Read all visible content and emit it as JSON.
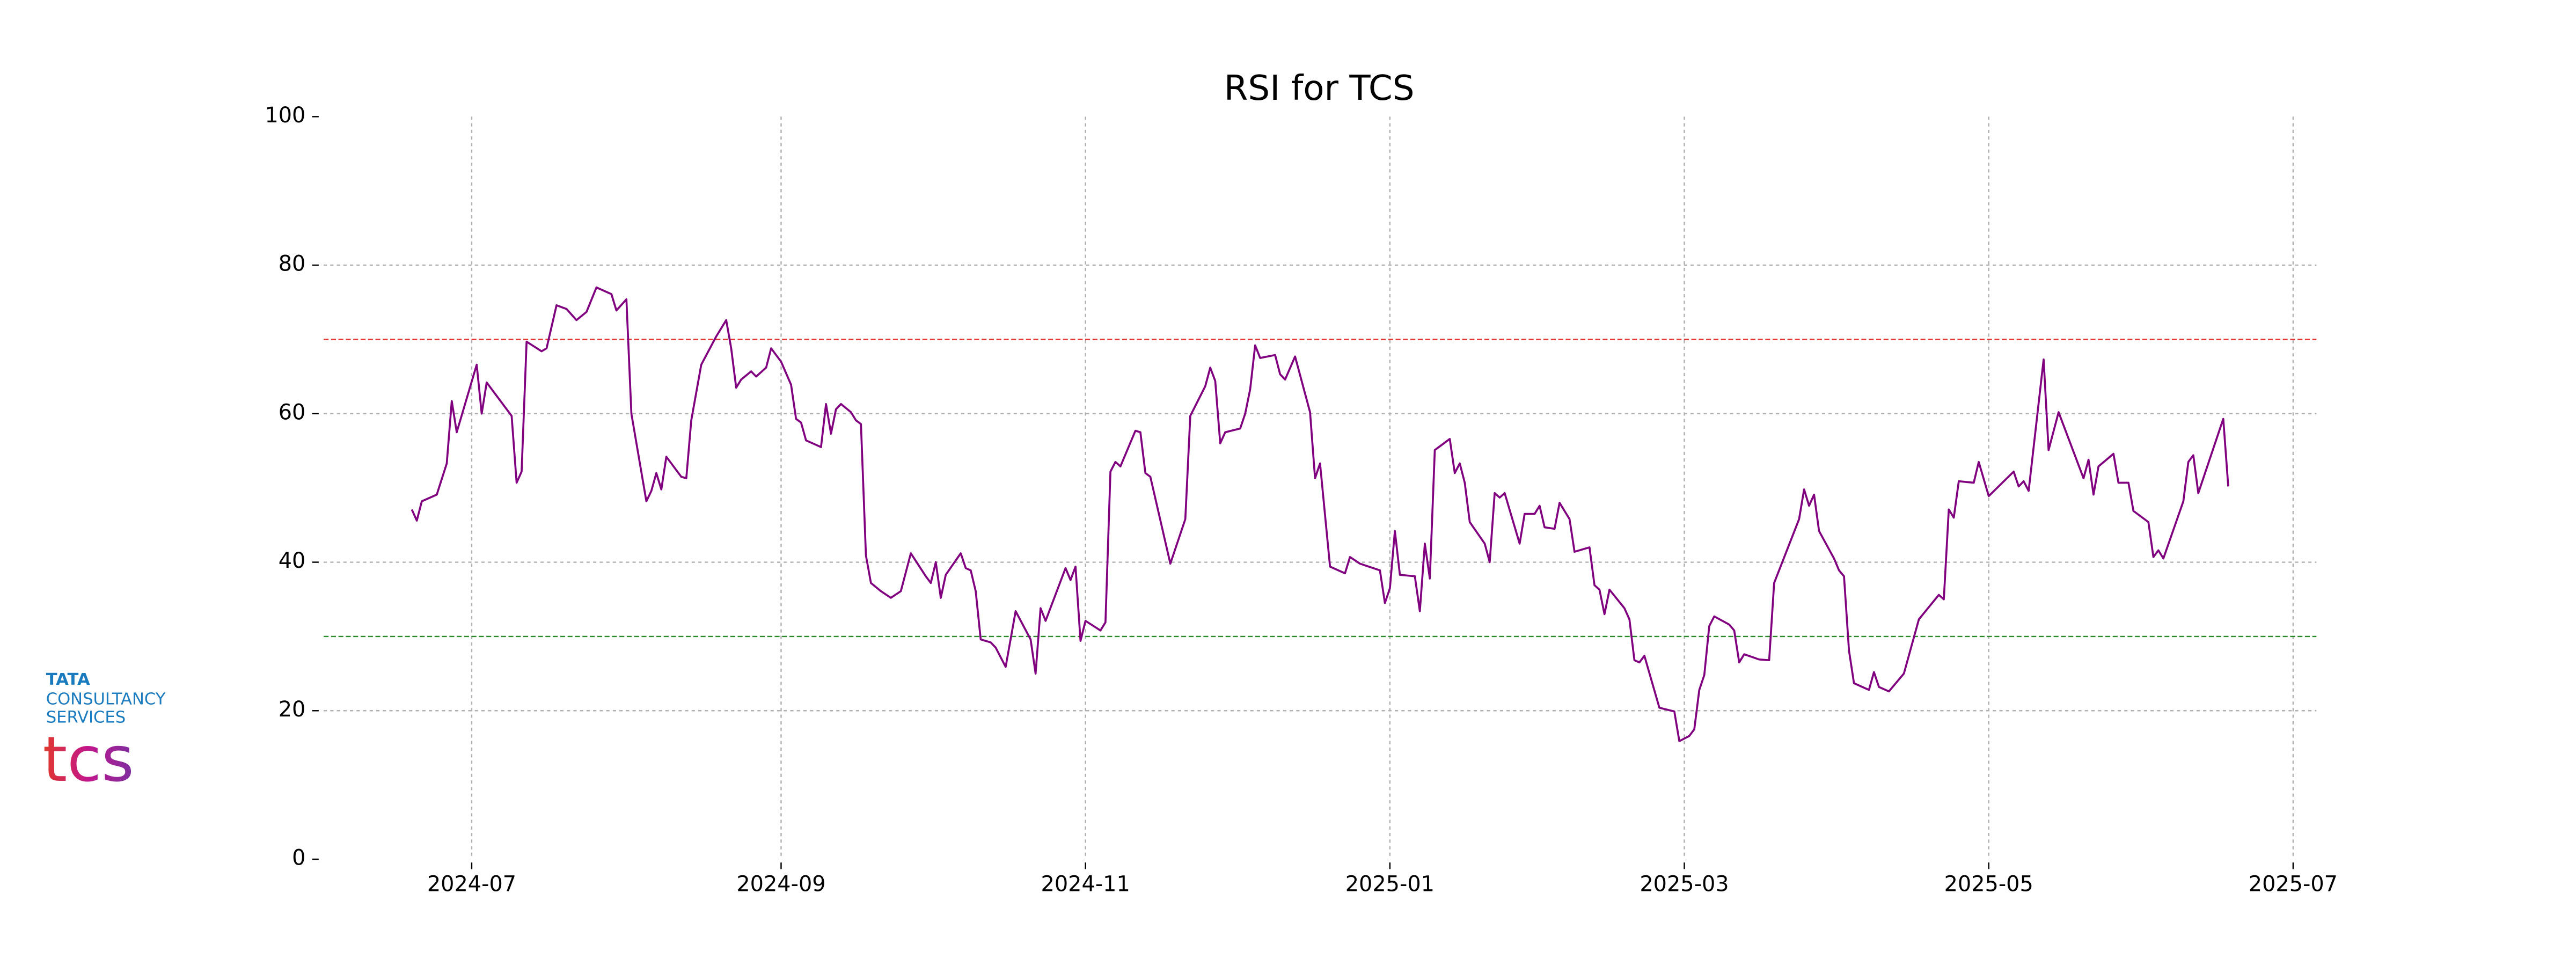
{
  "chart_data": {
    "type": "line",
    "title": "RSI for TCS",
    "x": [
      -12,
      -11,
      -10,
      -7,
      -5,
      -4,
      -3,
      1,
      2,
      3,
      8,
      9,
      10,
      11,
      14,
      15,
      17,
      19,
      21,
      23,
      25,
      28,
      29,
      31,
      32,
      35,
      36,
      37,
      38,
      39,
      42,
      43,
      44,
      46,
      49,
      51,
      52,
      53,
      54,
      56,
      57,
      59,
      60,
      62,
      64,
      65,
      66,
      67,
      70,
      71,
      72,
      73,
      74,
      76,
      77,
      78,
      79,
      80,
      82,
      84,
      86,
      88,
      91,
      92,
      93,
      94,
      95,
      98,
      99,
      100,
      101,
      102,
      104,
      105,
      107,
      109,
      112,
      113,
      114,
      115,
      119,
      120,
      121,
      122,
      123,
      126,
      127,
      128,
      129,
      130,
      133,
      134,
      135,
      136,
      140,
      143,
      144,
      147,
      148,
      149,
      150,
      151,
      154,
      155,
      156,
      157,
      158,
      161,
      162,
      163,
      165,
      168,
      169,
      170,
      172,
      175,
      176,
      178,
      182,
      183,
      184,
      185,
      186,
      189,
      190,
      191,
      192,
      193,
      196,
      197,
      198,
      199,
      200,
      203,
      204,
      205,
      206,
      207,
      210,
      211,
      213,
      214,
      215,
      217,
      218,
      220,
      221,
      224,
      225,
      226,
      227,
      228,
      231,
      232,
      233,
      234,
      235,
      238,
      241,
      242,
      244,
      245,
      246,
      247,
      248,
      249,
      252,
      253,
      254,
      255,
      258,
      260,
      261,
      266,
      267,
      268,
      269,
      270,
      273,
      274,
      275,
      276,
      277,
      280,
      281,
      282,
      284,
      287,
      290,
      294,
      295,
      296,
      297,
      298,
      301,
      302,
      304,
      309,
      310,
      311,
      312,
      315,
      316,
      318,
      323,
      324,
      325,
      326,
      329,
      330,
      332,
      333,
      336,
      337,
      338,
      339,
      343,
      344,
      345,
      346,
      351,
      352
    ],
    "values": [
      47.1,
      45.6,
      48.2,
      49.1,
      53.3,
      61.7,
      57.5,
      66.6,
      60.0,
      64.2,
      59.7,
      50.7,
      52.2,
      69.7,
      68.4,
      68.8,
      74.6,
      74.1,
      72.6,
      73.7,
      77.0,
      76.1,
      73.9,
      75.4,
      60.0,
      48.2,
      49.6,
      52.0,
      49.8,
      54.2,
      51.5,
      51.3,
      59.1,
      66.6,
      70.4,
      72.6,
      68.8,
      63.5,
      64.6,
      65.7,
      65.0,
      66.2,
      68.8,
      67.0,
      63.9,
      59.3,
      58.8,
      56.4,
      55.5,
      61.3,
      57.3,
      60.6,
      61.3,
      60.2,
      59.1,
      58.6,
      40.9,
      37.2,
      36.1,
      35.2,
      36.1,
      41.2,
      38.1,
      37.2,
      40.0,
      35.2,
      38.3,
      41.2,
      39.2,
      38.9,
      36.1,
      29.6,
      29.2,
      28.5,
      25.9,
      33.4,
      29.6,
      25.0,
      33.8,
      32.1,
      39.2,
      37.6,
      39.4,
      29.4,
      32.1,
      30.8,
      31.9,
      52.2,
      53.5,
      52.9,
      57.7,
      57.5,
      52.0,
      51.5,
      39.8,
      45.8,
      59.7,
      63.7,
      66.2,
      64.4,
      56.0,
      57.5,
      58.0,
      60.0,
      63.3,
      69.2,
      67.5,
      67.9,
      65.3,
      64.6,
      67.7,
      60.2,
      51.3,
      53.3,
      39.4,
      38.5,
      40.7,
      39.8,
      38.9,
      34.5,
      36.5,
      44.2,
      38.3,
      38.1,
      33.4,
      42.5,
      37.8,
      55.1,
      56.6,
      52.0,
      53.3,
      50.7,
      45.4,
      42.5,
      40.0,
      49.3,
      48.7,
      49.3,
      42.5,
      46.5,
      46.5,
      47.6,
      44.7,
      44.5,
      48.0,
      45.8,
      41.4,
      42.0,
      36.9,
      36.3,
      33.0,
      36.3,
      33.8,
      32.3,
      26.8,
      26.5,
      27.4,
      20.4,
      19.9,
      15.9,
      16.6,
      17.5,
      22.8,
      24.8,
      31.4,
      32.7,
      31.6,
      30.8,
      26.5,
      27.6,
      26.9,
      26.8,
      37.2,
      45.8,
      49.8,
      47.6,
      49.1,
      44.2,
      40.5,
      38.9,
      38.1,
      28.1,
      23.7,
      22.8,
      25.2,
      23.2,
      22.6,
      25.0,
      32.3,
      35.6,
      35.0,
      47.1,
      46.0,
      50.9,
      50.7,
      53.5,
      48.9,
      52.2,
      50.2,
      50.9,
      49.6,
      67.3,
      55.1,
      60.2,
      51.3,
      53.8,
      49.1,
      52.9,
      54.6,
      50.7,
      50.7,
      46.9,
      45.4,
      40.7,
      41.6,
      40.5,
      48.2,
      53.5,
      54.4,
      49.3,
      59.3,
      50.2
    ],
    "color": "#800080",
    "xlim": [
      -30,
      370
    ],
    "xticks": [
      {
        "value": 0,
        "label": "2024-07"
      },
      {
        "value": 62,
        "label": "2024-09"
      },
      {
        "value": 123,
        "label": "2024-11"
      },
      {
        "value": 184,
        "label": "2025-01"
      },
      {
        "value": 243,
        "label": "2025-03"
      },
      {
        "value": 304,
        "label": "2025-05"
      },
      {
        "value": 365,
        "label": "2025-07"
      }
    ],
    "ylim": [
      0,
      100
    ],
    "yticks": [
      0,
      20,
      40,
      60,
      80,
      100
    ],
    "grid": true,
    "reference_lines": [
      {
        "value": 70,
        "color": "#e03030"
      },
      {
        "value": 30,
        "color": "#2a8a2a"
      }
    ]
  },
  "logo": {
    "line1": "TATA",
    "line2": "CONSULTANCY",
    "line3": "SERVICES",
    "mark": "tcs"
  }
}
